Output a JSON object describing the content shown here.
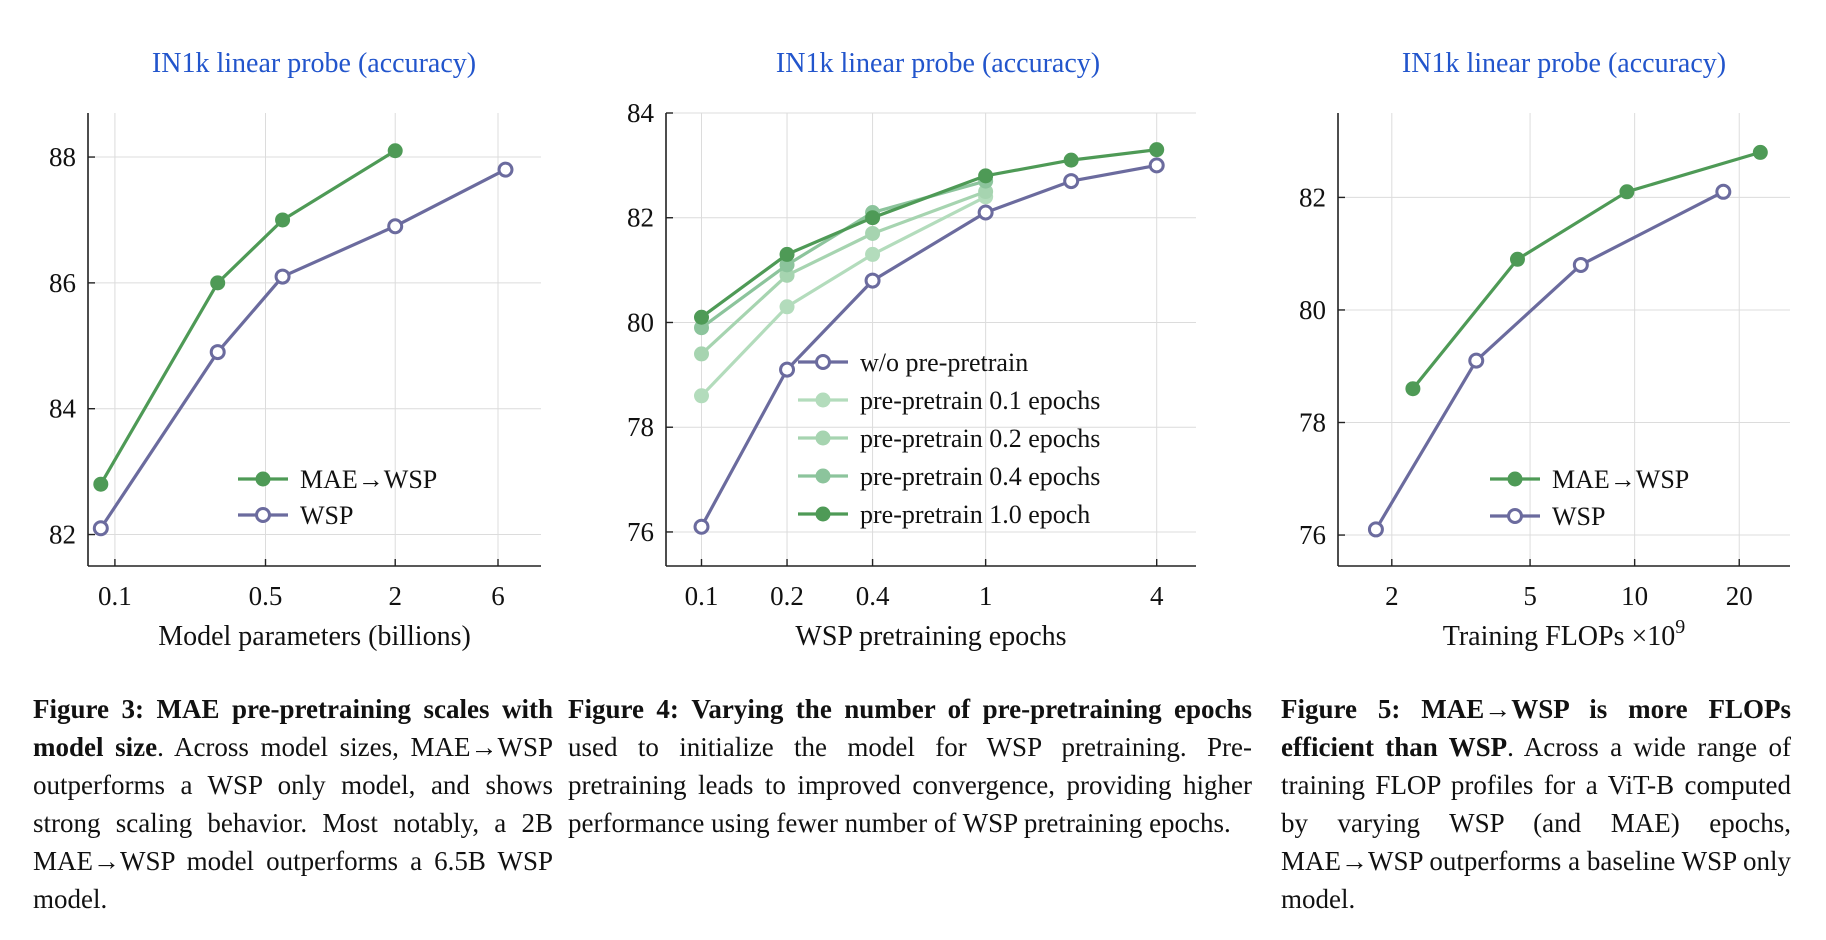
{
  "colors": {
    "mae_wsp": "#4e9a56",
    "wsp": "#6b6b9e",
    "pp01": "#b3dcbc",
    "pp02": "#a6d4b0",
    "pp04": "#8cc49c",
    "pp10": "#4e9a56",
    "title": "#2255cc",
    "grid": "#dcdcdc"
  },
  "chart_data": [
    {
      "id": "fig3",
      "type": "line",
      "title": "IN1k linear probe (accuracy)",
      "xlabel": "Model parameters (billions)",
      "xscale": "log",
      "xlim": [
        0.075,
        9.5
      ],
      "ylim": [
        81.5,
        88.7
      ],
      "xticks": [
        0.1,
        0.5,
        2,
        6
      ],
      "xtick_labels": [
        "0.1",
        "0.5",
        "2",
        "6"
      ],
      "yticks": [
        82,
        84,
        86,
        88
      ],
      "ytick_labels": [
        "82",
        "84",
        "86",
        "88"
      ],
      "legend": "bottom-right",
      "series": [
        {
          "name": "MAE→WSP",
          "style": "filled",
          "color_key": "mae_wsp",
          "x": [
            0.086,
            0.3,
            0.6,
            2.0
          ],
          "y": [
            82.8,
            86.0,
            87.0,
            88.1
          ]
        },
        {
          "name": "WSP",
          "style": "open",
          "color_key": "wsp",
          "x": [
            0.086,
            0.3,
            0.6,
            2.0,
            6.5
          ],
          "y": [
            82.1,
            84.9,
            86.1,
            86.9,
            87.8
          ]
        }
      ]
    },
    {
      "id": "fig4",
      "type": "line",
      "title": "IN1k linear probe (accuracy)",
      "xlabel": "WSP pretraining epochs",
      "xscale": "log",
      "xlim": [
        0.075,
        5.5
      ],
      "ylim": [
        75.35,
        84.0
      ],
      "xticks": [
        0.1,
        0.2,
        0.4,
        1,
        4
      ],
      "xtick_labels": [
        "0.1",
        "0.2",
        "0.4",
        "1",
        "4"
      ],
      "yticks": [
        76,
        78,
        80,
        82,
        84
      ],
      "ytick_labels": [
        "76",
        "78",
        "80",
        "82",
        "84"
      ],
      "legend": "center-right",
      "series": [
        {
          "name": "w/o pre-pretrain",
          "style": "open",
          "color_key": "wsp",
          "x": [
            0.1,
            0.2,
            0.4,
            1,
            2,
            4
          ],
          "y": [
            76.1,
            79.1,
            80.8,
            82.1,
            82.7,
            83.0
          ]
        },
        {
          "name": "pre-pretrain 0.1 epochs",
          "style": "filled",
          "color_key": "pp01",
          "x": [
            0.1,
            0.2,
            0.4,
            1
          ],
          "y": [
            78.6,
            80.3,
            81.3,
            82.4
          ]
        },
        {
          "name": "pre-pretrain 0.2 epochs",
          "style": "filled",
          "color_key": "pp02",
          "x": [
            0.1,
            0.2,
            0.4,
            1
          ],
          "y": [
            79.4,
            80.9,
            81.7,
            82.5
          ]
        },
        {
          "name": "pre-pretrain 0.4 epochs",
          "style": "filled",
          "color_key": "pp04",
          "x": [
            0.1,
            0.2,
            0.4,
            1
          ],
          "y": [
            79.9,
            81.1,
            82.1,
            82.7
          ]
        },
        {
          "name": "pre-pretrain 1.0 epoch",
          "style": "filled",
          "color_key": "pp10",
          "x": [
            0.1,
            0.2,
            0.4,
            1,
            2,
            4
          ],
          "y": [
            80.1,
            81.3,
            82.0,
            82.8,
            83.1,
            83.3
          ]
        }
      ]
    },
    {
      "id": "fig5",
      "type": "line",
      "title": "IN1k linear probe (accuracy)",
      "xlabel": "Training FLOPs ×10",
      "xlabel_sup": "9",
      "xscale": "log",
      "xlim": [
        1.4,
        28
      ],
      "ylim": [
        75.45,
        83.5
      ],
      "xticks": [
        2,
        5,
        10,
        20
      ],
      "xtick_labels": [
        "2",
        "5",
        "10",
        "20"
      ],
      "yticks": [
        76,
        78,
        80,
        82
      ],
      "ytick_labels": [
        "76",
        "78",
        "80",
        "82"
      ],
      "legend": "bottom-right",
      "series": [
        {
          "name": "MAE→WSP",
          "style": "filled",
          "color_key": "mae_wsp",
          "x": [
            2.3,
            4.6,
            9.5,
            23
          ],
          "y": [
            78.6,
            80.9,
            82.1,
            82.8
          ]
        },
        {
          "name": "WSP",
          "style": "open",
          "color_key": "wsp",
          "x": [
            1.8,
            3.5,
            7.0,
            18
          ],
          "y": [
            76.1,
            79.1,
            80.8,
            82.1
          ]
        }
      ]
    }
  ],
  "captions": {
    "fig3": {
      "label": "Figure 3:",
      "bold": "MAE pre-pretraining scales with model size",
      "text": ". Across model sizes, MAE→WSP outperforms a WSP only model, and shows strong scaling behavior. Most notably, a 2B MAE→WSP model outperforms a 6.5B WSP model."
    },
    "fig4": {
      "label": "Figure 4:",
      "bold": "Varying the number of pre-pretraining epochs",
      "text": " used to initialize the model for WSP pretraining. Pre-pretraining leads to improved convergence, providing higher performance using fewer number of WSP pretraining epochs."
    },
    "fig5": {
      "label": "Figure 5:",
      "bold": "MAE→WSP is more FLOPs efficient than WSP",
      "text": ". Across a wide range of training FLOP profiles for a ViT-B computed by varying WSP (and MAE) epochs, MAE→WSP outperforms a baseline WSP only model."
    }
  }
}
